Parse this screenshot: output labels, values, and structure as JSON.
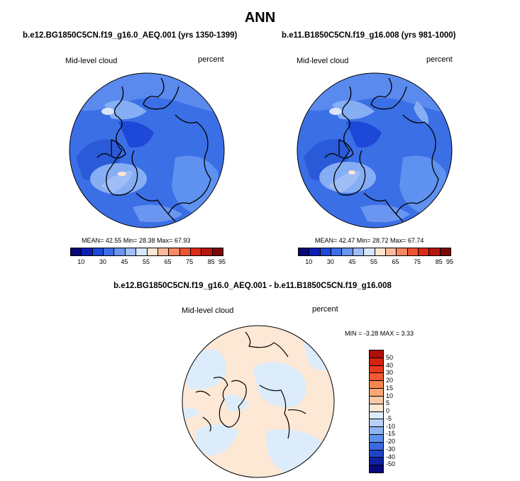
{
  "title": "ANN",
  "panels": [
    {
      "case": "b.e12.BG1850C5CN.f19_g16.0_AEQ.001 (yrs 1350-1399)",
      "variable": "Mid-level cloud",
      "units": "percent",
      "stats": "MEAN=  42.55  Min=  28.38  Max=  67.93"
    },
    {
      "case": "b.e11.B1850C5CN.f19_g16.008 (yrs 981-1000)",
      "variable": "Mid-level cloud",
      "units": "percent",
      "stats": "MEAN=  42.47  Min=  28.72  Max=  67.74"
    }
  ],
  "diff": {
    "title": "b.e12.BG1850C5CN.f19_g16.0_AEQ.001 - b.e11.B1850C5CN.f19_g16.008",
    "variable": "Mid-level cloud",
    "units": "percent",
    "stats": "MIN =  -3.28 MAX =   3.33"
  },
  "colorbar": {
    "colors": [
      "#08087a",
      "#0c1fb4",
      "#1e48d8",
      "#3d6ee8",
      "#6a95f0",
      "#a0bdf6",
      "#d8e6fb",
      "#fde6d2",
      "#fbb89a",
      "#f6875f",
      "#ef5535",
      "#dd2a16",
      "#b6150c",
      "#7c0606"
    ],
    "labels": [
      "10",
      "30",
      "45",
      "55",
      "65",
      "75",
      "85",
      "95"
    ]
  },
  "diff_colorbar": {
    "colors": [
      "#b00e08",
      "#d4230f",
      "#ea3a1d",
      "#f15a32",
      "#f6854f",
      "#f9a776",
      "#fbc9a8",
      "#fde8d6",
      "#dcecfb",
      "#b8d1f6",
      "#8db3f0",
      "#5f8fe8",
      "#3b69db",
      "#1f45c6",
      "#0f22a0",
      "#08087a"
    ],
    "labels": [
      "50",
      "40",
      "30",
      "20",
      "15",
      "10",
      "5",
      "0",
      "-5",
      "-10",
      "-15",
      "-20",
      "-30",
      "-40",
      "-50"
    ]
  }
}
